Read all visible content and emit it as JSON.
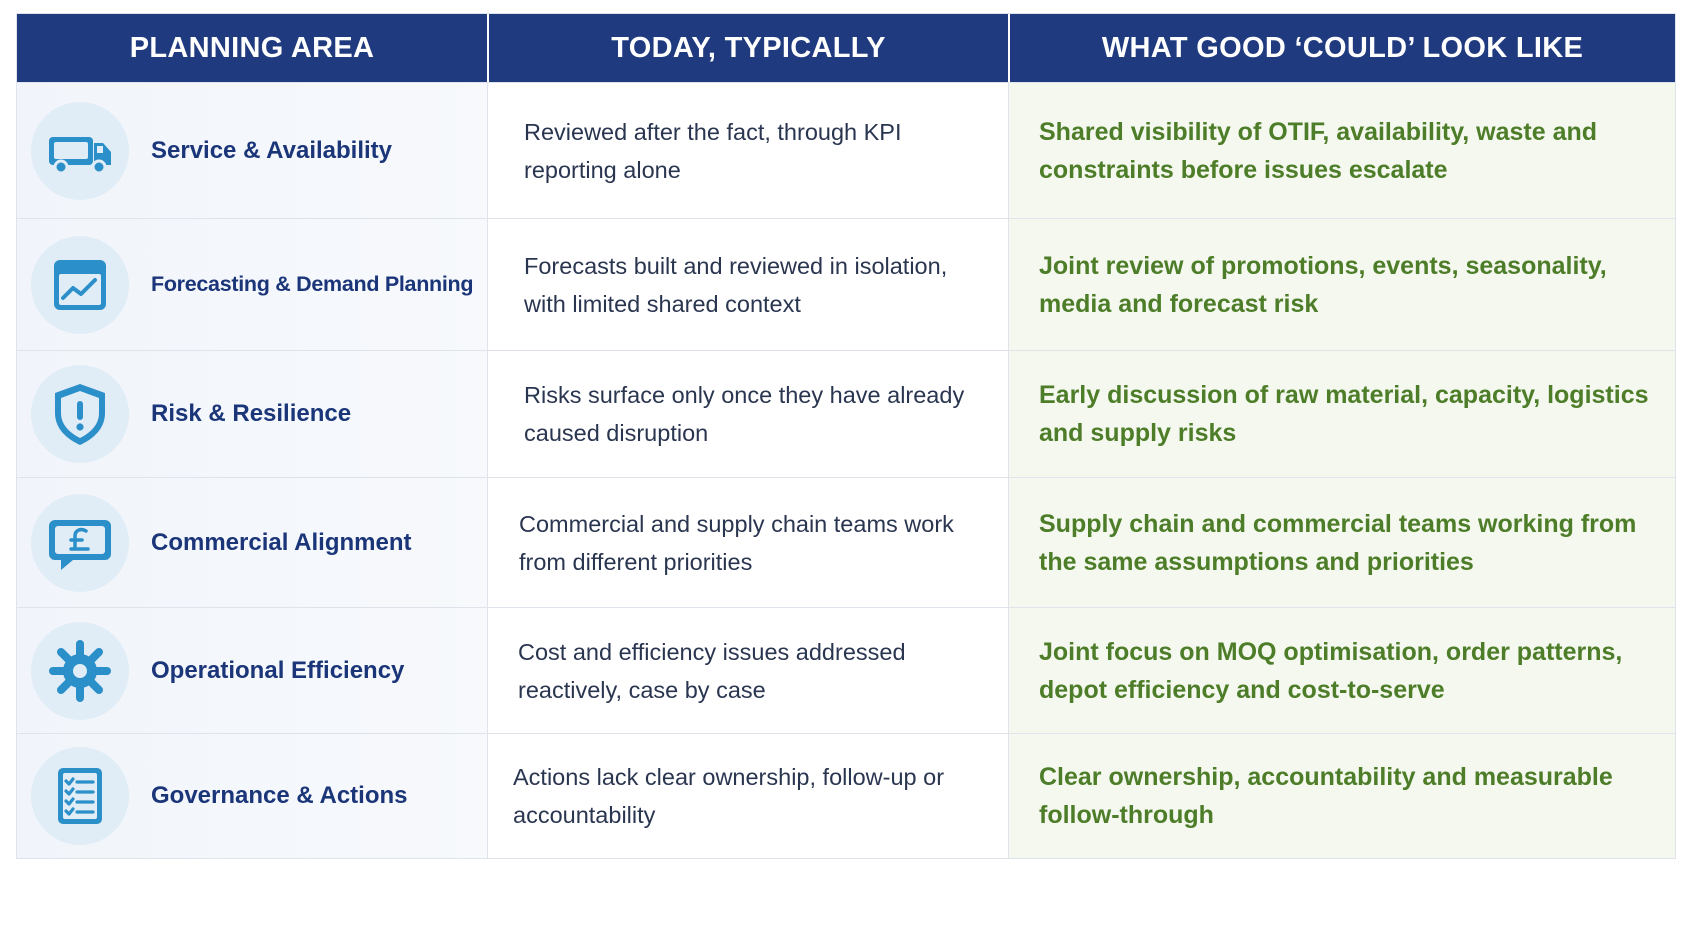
{
  "header": {
    "col1": "PLANNING AREA",
    "col2": "TODAY, TYPICALLY",
    "col3": "WHAT GOOD ‘COULD’ LOOK LIKE"
  },
  "rows": [
    {
      "icon": "truck-icon",
      "area": "Service & Availability",
      "today": "Reviewed after the fact, through KPI reporting alone",
      "good": "Shared visibility of OTIF, availability, waste and constraints before issues escalate"
    },
    {
      "icon": "trend-chart-icon",
      "area": "Forecasting & Demand Planning",
      "today": "Forecasts built and reviewed in isolation, with limited shared context",
      "good": "Joint review of promotions, events, seasonality, media and forecast risk"
    },
    {
      "icon": "shield-alert-icon",
      "area": "Risk & Resilience",
      "today": "Risks surface only once they have already caused disruption",
      "good": "Early discussion of raw material, capacity, logistics and supply risks"
    },
    {
      "icon": "pound-chat-icon",
      "area": "Commercial Alignment",
      "today": "Commercial and supply chain teams work from different priorities",
      "good": "Supply chain and commercial teams working from the same assumptions and priorities"
    },
    {
      "icon": "gear-icon",
      "area": "Operational Efficiency",
      "today": "Cost and efficiency issues addressed reactively, case by case",
      "good": "Joint focus on MOQ optimisation, order patterns, depot efficiency and cost-to-serve"
    },
    {
      "icon": "checklist-icon",
      "area": "Governance & Actions",
      "today": "Actions lack clear ownership, follow-up or accountability",
      "good": "Clear ownership, accountability and measurable follow-through"
    }
  ],
  "colors": {
    "header_bg": "#1f3a7f",
    "area_text": "#1b3579",
    "good_text": "#4d7d28",
    "icon_blue": "#2b8fc9",
    "icon_circle": "#e0ecf6"
  }
}
